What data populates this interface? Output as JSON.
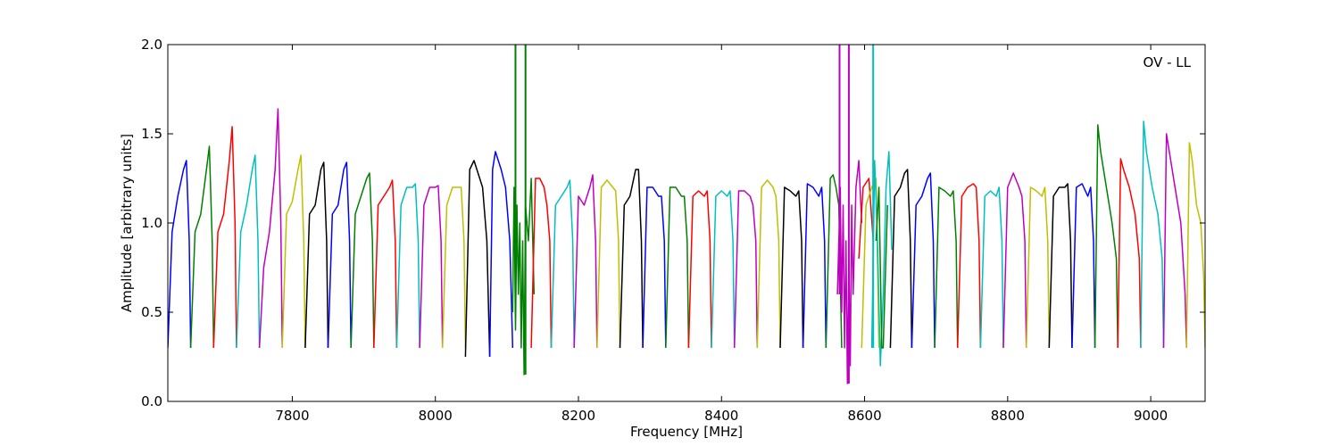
{
  "chart_data": {
    "type": "line",
    "title": "",
    "annotation": "OV - LL",
    "xlabel": "Frequency [MHz]",
    "ylabel": "Amplitude [arbitrary units]",
    "xlim": [
      7626,
      9076
    ],
    "ylim": [
      0.0,
      2.0
    ],
    "xticks": [
      7800,
      8000,
      8200,
      8400,
      8600,
      8800,
      9000
    ],
    "yticks": [
      0.0,
      0.5,
      1.0,
      1.5,
      2.0
    ],
    "xtick_labels": [
      "7800",
      "8000",
      "8200",
      "8400",
      "8600",
      "8800",
      "9000"
    ],
    "ytick_labels": [
      "0.0",
      "0.5",
      "1.0",
      "1.5",
      "2.0"
    ],
    "grid": false,
    "color_cycle": [
      "#0000ff",
      "#008000",
      "#ff0000",
      "#00bfbf",
      "#bf00bf",
      "#bfbf00",
      "#000000"
    ],
    "channel_spacing_mhz": 32,
    "first_channel_center_mhz": 7642,
    "series": [
      {
        "color": "#0000ff",
        "x": [
          7626,
          7632,
          7640,
          7648,
          7652,
          7656,
          7658
        ],
        "y": [
          0.3,
          0.95,
          1.15,
          1.3,
          1.35,
          0.9,
          0.3
        ]
      },
      {
        "color": "#008000",
        "x": [
          7658,
          7664,
          7672,
          7680,
          7684,
          7688,
          7690
        ],
        "y": [
          0.3,
          0.95,
          1.05,
          1.3,
          1.43,
          0.9,
          0.3
        ]
      },
      {
        "color": "#ff0000",
        "x": [
          7690,
          7696,
          7704,
          7712,
          7716,
          7720,
          7722
        ],
        "y": [
          0.3,
          0.95,
          1.05,
          1.35,
          1.54,
          1.0,
          0.3
        ]
      },
      {
        "color": "#00bfbf",
        "x": [
          7722,
          7728,
          7736,
          7744,
          7748,
          7752,
          7754
        ],
        "y": [
          0.3,
          0.95,
          1.1,
          1.3,
          1.38,
          0.9,
          0.3
        ]
      },
      {
        "color": "#bf00bf",
        "x": [
          7754,
          7760,
          7768,
          7776,
          7780,
          7784,
          7786
        ],
        "y": [
          0.3,
          0.75,
          0.95,
          1.3,
          1.64,
          1.0,
          0.3
        ]
      },
      {
        "color": "#bfbf00",
        "x": [
          7786,
          7792,
          7800,
          7808,
          7812,
          7816,
          7818
        ],
        "y": [
          0.3,
          1.05,
          1.12,
          1.3,
          1.38,
          0.9,
          0.3
        ]
      },
      {
        "color": "#000000",
        "x": [
          7818,
          7824,
          7832,
          7840,
          7844,
          7848,
          7850
        ],
        "y": [
          0.3,
          1.05,
          1.1,
          1.3,
          1.34,
          0.9,
          0.3
        ]
      },
      {
        "color": "#0000ff",
        "x": [
          7850,
          7856,
          7864,
          7872,
          7876,
          7880,
          7882
        ],
        "y": [
          0.3,
          1.05,
          1.1,
          1.3,
          1.34,
          0.9,
          0.3
        ]
      },
      {
        "color": "#008000",
        "x": [
          7882,
          7888,
          7896,
          7904,
          7908,
          7912,
          7914
        ],
        "y": [
          0.3,
          1.05,
          1.15,
          1.25,
          1.28,
          0.9,
          0.3
        ]
      },
      {
        "color": "#ff0000",
        "x": [
          7914,
          7920,
          7928,
          7936,
          7940,
          7944,
          7946
        ],
        "y": [
          0.3,
          1.1,
          1.15,
          1.2,
          1.24,
          0.9,
          0.3
        ]
      },
      {
        "color": "#00bfbf",
        "x": [
          7946,
          7952,
          7960,
          7968,
          7972,
          7976,
          7978
        ],
        "y": [
          0.3,
          1.1,
          1.2,
          1.2,
          1.22,
          0.9,
          0.3
        ]
      },
      {
        "color": "#bf00bf",
        "x": [
          7978,
          7984,
          7992,
          8000,
          8004,
          8008,
          8010
        ],
        "y": [
          0.3,
          1.1,
          1.2,
          1.2,
          1.21,
          0.9,
          0.3
        ]
      },
      {
        "color": "#bfbf00",
        "x": [
          8010,
          8016,
          8024,
          8032,
          8036,
          8040,
          8042
        ],
        "y": [
          0.3,
          1.1,
          1.2,
          1.2,
          1.2,
          0.9,
          0.3
        ]
      },
      {
        "color": "#000000",
        "x": [
          8042,
          8048,
          8054,
          8062,
          8066,
          8072,
          8076
        ],
        "y": [
          0.25,
          1.3,
          1.35,
          1.25,
          1.2,
          0.9,
          0.25
        ]
      },
      {
        "color": "#0000ff",
        "x": [
          8076,
          8080,
          8084,
          8092,
          8098,
          8104,
          8108
        ],
        "y": [
          0.25,
          1.3,
          1.4,
          1.3,
          1.2,
          0.9,
          0.3
        ]
      },
      {
        "color": "#008000",
        "x": [
          8108,
          8110,
          8112,
          8114,
          8116,
          8118,
          8120,
          8122,
          8124,
          8126,
          8130,
          8134,
          8138
        ],
        "y": [
          0.5,
          1.2,
          0.4,
          1.1,
          0.6,
          1.0,
          0.3,
          0.9,
          0.15,
          1.1,
          0.9,
          1.25,
          0.6
        ]
      },
      {
        "color": "#ff0000",
        "x": [
          8134,
          8140,
          8146,
          8152,
          8156,
          8160,
          8162
        ],
        "y": [
          0.3,
          1.25,
          1.25,
          1.2,
          1.1,
          0.9,
          0.3
        ]
      },
      {
        "color": "#00bfbf",
        "x": [
          8162,
          8168,
          8176,
          8184,
          8188,
          8192,
          8194
        ],
        "y": [
          0.3,
          1.1,
          1.15,
          1.2,
          1.24,
          0.9,
          0.3
        ]
      },
      {
        "color": "#bf00bf",
        "x": [
          8194,
          8200,
          8208,
          8216,
          8220,
          8224,
          8226
        ],
        "y": [
          0.3,
          1.15,
          1.1,
          1.2,
          1.27,
          0.9,
          0.3
        ]
      },
      {
        "color": "#bfbf00",
        "x": [
          8226,
          8232,
          8240,
          8248,
          8252,
          8256,
          8258
        ],
        "y": [
          0.3,
          1.2,
          1.24,
          1.2,
          1.18,
          0.9,
          0.3
        ]
      },
      {
        "color": "#000000",
        "x": [
          8258,
          8264,
          8272,
          8280,
          8284,
          8288,
          8290
        ],
        "y": [
          0.3,
          1.1,
          1.15,
          1.3,
          1.3,
          0.9,
          0.3
        ]
      },
      {
        "color": "#0000ff",
        "x": [
          8290,
          8296,
          8304,
          8312,
          8316,
          8320,
          8322
        ],
        "y": [
          0.3,
          1.2,
          1.2,
          1.15,
          1.15,
          0.9,
          0.3
        ]
      },
      {
        "color": "#008000",
        "x": [
          8322,
          8328,
          8336,
          8344,
          8348,
          8352,
          8354
        ],
        "y": [
          0.3,
          1.2,
          1.2,
          1.15,
          1.15,
          0.9,
          0.3
        ]
      },
      {
        "color": "#ff0000",
        "x": [
          8354,
          8360,
          8368,
          8376,
          8380,
          8384,
          8386
        ],
        "y": [
          0.3,
          1.15,
          1.18,
          1.15,
          1.18,
          0.9,
          0.3
        ]
      },
      {
        "color": "#00bfbf",
        "x": [
          8386,
          8392,
          8400,
          8408,
          8412,
          8416,
          8418
        ],
        "y": [
          0.3,
          1.15,
          1.18,
          1.15,
          1.18,
          0.9,
          0.3
        ]
      },
      {
        "color": "#bf00bf",
        "x": [
          8418,
          8424,
          8432,
          8440,
          8444,
          8448,
          8450
        ],
        "y": [
          0.3,
          1.18,
          1.18,
          1.15,
          1.1,
          0.9,
          0.3
        ]
      },
      {
        "color": "#bfbf00",
        "x": [
          8450,
          8456,
          8464,
          8472,
          8476,
          8480,
          8482
        ],
        "y": [
          0.3,
          1.2,
          1.24,
          1.2,
          1.15,
          0.9,
          0.3
        ]
      },
      {
        "color": "#000000",
        "x": [
          8482,
          8488,
          8496,
          8504,
          8508,
          8512,
          8514
        ],
        "y": [
          0.3,
          1.2,
          1.18,
          1.15,
          1.18,
          0.9,
          0.3
        ]
      },
      {
        "color": "#0000ff",
        "x": [
          8514,
          8520,
          8528,
          8536,
          8540,
          8544,
          8546
        ],
        "y": [
          0.3,
          1.22,
          1.2,
          1.15,
          1.2,
          0.9,
          0.3
        ]
      },
      {
        "color": "#008000",
        "x": [
          8546,
          8552,
          8556,
          8560,
          8564,
          8568
        ],
        "y": [
          0.3,
          1.25,
          1.27,
          1.2,
          1.1,
          0.3
        ]
      },
      {
        "color": "#bf00bf",
        "x": [
          8562,
          8566,
          8568,
          8570,
          8572,
          8574,
          8576,
          8578,
          8580,
          8582,
          8584,
          8588,
          8592,
          8596
        ],
        "y": [
          0.6,
          1.2,
          0.5,
          1.1,
          0.3,
          0.9,
          0.1,
          0.8,
          0.2,
          1.1,
          0.6,
          1.2,
          1.35,
          1.0
        ]
      },
      {
        "color": "#ff0000",
        "x": [
          8592,
          8598,
          8606,
          8612
        ],
        "y": [
          0.8,
          1.2,
          1.25,
          0.9
        ]
      },
      {
        "color": "#bfbf00",
        "x": [
          8596,
          8602,
          8610,
          8616,
          8620
        ],
        "y": [
          0.3,
          1.1,
          1.2,
          1.25,
          0.3
        ]
      },
      {
        "color": "#00bfbf",
        "x": [
          8610,
          8614,
          8618,
          8622,
          8626,
          8630,
          8634,
          8638
        ],
        "y": [
          0.3,
          1.35,
          0.9,
          0.2,
          0.6,
          1.2,
          1.4,
          0.85
        ]
      },
      {
        "color": "#008000",
        "x": [
          8616,
          8620,
          8624,
          8626,
          8632
        ],
        "y": [
          0.9,
          1.2,
          0.3,
          0.3,
          1.1
        ]
      },
      {
        "color": "#000000",
        "x": [
          8636,
          8642,
          8650,
          8656,
          8660,
          8664,
          8666
        ],
        "y": [
          0.3,
          1.15,
          1.2,
          1.28,
          1.3,
          0.9,
          0.3
        ]
      },
      {
        "color": "#0000ff",
        "x": [
          8666,
          8672,
          8680,
          8688,
          8692,
          8696,
          8698
        ],
        "y": [
          0.3,
          1.1,
          1.15,
          1.25,
          1.28,
          0.9,
          0.3
        ]
      },
      {
        "color": "#008000",
        "x": [
          8698,
          8704,
          8712,
          8720,
          8724,
          8728,
          8730
        ],
        "y": [
          0.3,
          1.2,
          1.18,
          1.15,
          1.18,
          0.9,
          0.3
        ]
      },
      {
        "color": "#ff0000",
        "x": [
          8730,
          8736,
          8744,
          8752,
          8756,
          8760,
          8762
        ],
        "y": [
          0.3,
          1.15,
          1.2,
          1.22,
          1.2,
          0.9,
          0.3
        ]
      },
      {
        "color": "#00bfbf",
        "x": [
          8762,
          8768,
          8776,
          8784,
          8788,
          8792,
          8794
        ],
        "y": [
          0.3,
          1.15,
          1.18,
          1.15,
          1.2,
          0.9,
          0.3
        ]
      },
      {
        "color": "#bf00bf",
        "x": [
          8794,
          8800,
          8808,
          8816,
          8820,
          8824,
          8826
        ],
        "y": [
          0.3,
          1.2,
          1.28,
          1.2,
          1.15,
          0.9,
          0.3
        ]
      },
      {
        "color": "#bfbf00",
        "x": [
          8826,
          8832,
          8840,
          8848,
          8852,
          8856,
          8858
        ],
        "y": [
          0.3,
          1.2,
          1.18,
          1.15,
          1.2,
          0.9,
          0.3
        ]
      },
      {
        "color": "#000000",
        "x": [
          8858,
          8864,
          8872,
          8880,
          8884,
          8888,
          8890
        ],
        "y": [
          0.3,
          1.15,
          1.2,
          1.2,
          1.22,
          0.9,
          0.3
        ]
      },
      {
        "color": "#0000ff",
        "x": [
          8890,
          8896,
          8904,
          8912,
          8916,
          8920,
          8922
        ],
        "y": [
          0.3,
          1.2,
          1.22,
          1.15,
          1.2,
          0.9,
          0.3
        ]
      },
      {
        "color": "#008000",
        "x": [
          8922,
          8926,
          8930,
          8938,
          8946,
          8952,
          8954
        ],
        "y": [
          0.3,
          1.55,
          1.4,
          1.2,
          1.0,
          0.8,
          0.3
        ]
      },
      {
        "color": "#ff0000",
        "x": [
          8954,
          8958,
          8962,
          8970,
          8978,
          8984,
          8986
        ],
        "y": [
          0.3,
          1.36,
          1.3,
          1.2,
          1.05,
          0.8,
          0.3
        ]
      },
      {
        "color": "#00bfbf",
        "x": [
          8986,
          8990,
          8994,
          9002,
          9010,
          9016,
          9018
        ],
        "y": [
          0.3,
          1.57,
          1.4,
          1.2,
          1.05,
          0.8,
          0.3
        ]
      },
      {
        "color": "#bf00bf",
        "x": [
          9018,
          9022,
          9026,
          9034,
          9042,
          9048,
          9050
        ],
        "y": [
          0.3,
          1.5,
          1.4,
          1.2,
          1.0,
          0.6,
          0.3
        ]
      },
      {
        "color": "#bfbf00",
        "x": [
          9050,
          9054,
          9058,
          9064,
          9070,
          9074,
          9076
        ],
        "y": [
          0.3,
          1.45,
          1.35,
          1.1,
          1.0,
          0.7,
          0.3
        ]
      }
    ],
    "spikes": [
      {
        "color": "#008000",
        "x": 8112,
        "y_from": 0.5,
        "y_to": 2.0
      },
      {
        "color": "#008000",
        "x": 8126,
        "y_from": 0.15,
        "y_to": 2.0
      },
      {
        "color": "#bf00bf",
        "x": 8565,
        "y_from": 0.6,
        "y_to": 2.0
      },
      {
        "color": "#bf00bf",
        "x": 8578,
        "y_from": 0.1,
        "y_to": 2.0
      },
      {
        "color": "#00bfbf",
        "x": 8612,
        "y_from": 0.3,
        "y_to": 2.0
      }
    ]
  }
}
